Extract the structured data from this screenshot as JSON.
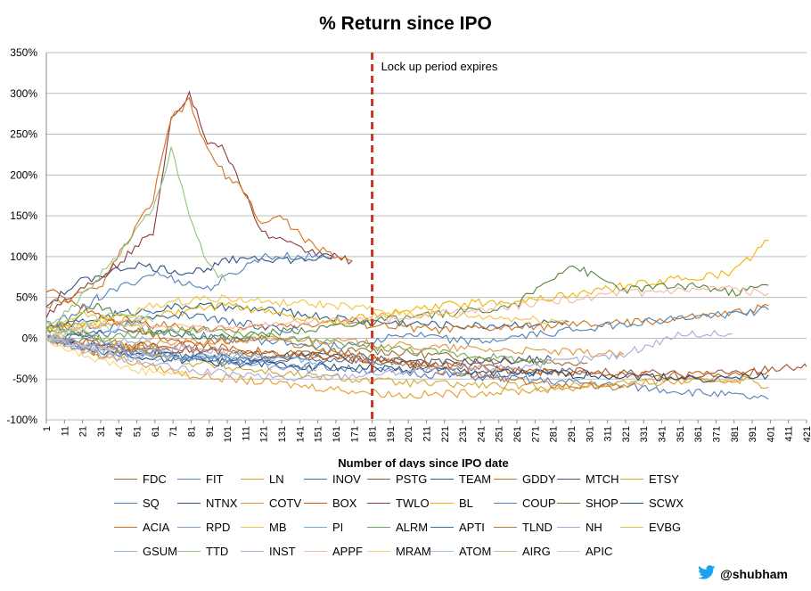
{
  "chart_data": {
    "type": "line",
    "title": "% Return since IPO",
    "xlabel": "Number of days since IPO date",
    "ylabel": "",
    "ylim": [
      -100,
      350
    ],
    "xlim": [
      1,
      421
    ],
    "y_ticks": [
      "-100%",
      "-50%",
      "0%",
      "50%",
      "100%",
      "150%",
      "200%",
      "250%",
      "300%",
      "350%"
    ],
    "x_ticks": [
      1,
      11,
      21,
      31,
      41,
      51,
      61,
      71,
      81,
      91,
      101,
      111,
      121,
      131,
      141,
      151,
      161,
      171,
      181,
      191,
      201,
      211,
      221,
      231,
      241,
      251,
      261,
      271,
      281,
      291,
      301,
      311,
      321,
      331,
      341,
      351,
      361,
      371,
      381,
      391,
      401,
      411,
      421
    ],
    "grid": true,
    "legend_position": "bottom",
    "annotation": {
      "x": 181,
      "text": "Lock up period expires",
      "style": "dashed-red-vertical"
    },
    "series": [
      {
        "name": "FDC",
        "color": "#9c6c2e",
        "points": [
          [
            1,
            0
          ],
          [
            60,
            -10
          ],
          [
            120,
            -20
          ],
          [
            180,
            -15
          ],
          [
            240,
            -25
          ],
          [
            300,
            -30
          ]
        ]
      },
      {
        "name": "FIT",
        "color": "#5b7db8",
        "points": [
          [
            1,
            20
          ],
          [
            40,
            -10
          ],
          [
            90,
            -25
          ],
          [
            150,
            -35
          ],
          [
            220,
            -45
          ],
          [
            300,
            -55
          ],
          [
            380,
            -70
          ],
          [
            400,
            -75
          ]
        ]
      },
      {
        "name": "LN",
        "color": "#e39b2b",
        "points": [
          [
            1,
            0
          ],
          [
            30,
            -20
          ],
          [
            80,
            -45
          ],
          [
            150,
            -60
          ],
          [
            200,
            -70
          ],
          [
            260,
            -65
          ],
          [
            330,
            -55
          ],
          [
            390,
            -50
          ],
          [
            400,
            -60
          ]
        ]
      },
      {
        "name": "INOV",
        "color": "#3c6fa8",
        "points": [
          [
            1,
            0
          ],
          [
            40,
            -15
          ],
          [
            100,
            -30
          ],
          [
            170,
            -25
          ],
          [
            240,
            -45
          ],
          [
            300,
            -40
          ]
        ]
      },
      {
        "name": "PSTG",
        "color": "#a0522d",
        "points": [
          [
            1,
            0
          ],
          [
            50,
            -10
          ],
          [
            120,
            -20
          ],
          [
            200,
            -30
          ],
          [
            280,
            -40
          ],
          [
            360,
            -45
          ],
          [
            421,
            -35
          ]
        ]
      },
      {
        "name": "TEAM",
        "color": "#2e5f8a",
        "points": [
          [
            1,
            10
          ],
          [
            40,
            30
          ],
          [
            80,
            40
          ],
          [
            120,
            35
          ],
          [
            180,
            20
          ],
          [
            240,
            15
          ],
          [
            290,
            20
          ]
        ]
      },
      {
        "name": "GDDY",
        "color": "#c8701c",
        "points": [
          [
            1,
            10
          ],
          [
            40,
            20
          ],
          [
            100,
            10
          ],
          [
            160,
            20
          ],
          [
            220,
            10
          ],
          [
            280,
            15
          ],
          [
            330,
            20
          ],
          [
            380,
            30
          ],
          [
            400,
            40
          ]
        ]
      },
      {
        "name": "MTCH",
        "color": "#3d5a80",
        "points": [
          [
            1,
            0
          ],
          [
            40,
            -15
          ],
          [
            100,
            -25
          ],
          [
            160,
            -20
          ],
          [
            220,
            -30
          ],
          [
            280,
            -25
          ]
        ]
      },
      {
        "name": "ETSY",
        "color": "#d4a72c",
        "points": [
          [
            1,
            20
          ],
          [
            30,
            0
          ],
          [
            80,
            -30
          ],
          [
            140,
            -45
          ],
          [
            200,
            -55
          ],
          [
            280,
            -60
          ],
          [
            350,
            -50
          ],
          [
            390,
            -50
          ]
        ]
      },
      {
        "name": "SQ",
        "color": "#4a7fb6",
        "points": [
          [
            1,
            0
          ],
          [
            50,
            10
          ],
          [
            100,
            0
          ],
          [
            160,
            -10
          ],
          [
            200,
            5
          ],
          [
            240,
            -5
          ],
          [
            290,
            10
          ],
          [
            330,
            20
          ],
          [
            380,
            30
          ],
          [
            400,
            35
          ]
        ]
      },
      {
        "name": "NTNX",
        "color": "#2d4f86",
        "points": [
          [
            1,
            40
          ],
          [
            20,
            70
          ],
          [
            50,
            90
          ],
          [
            80,
            80
          ],
          [
            110,
            100
          ],
          [
            140,
            95
          ],
          [
            160,
            100
          ]
        ]
      },
      {
        "name": "COTV",
        "color": "#e69138",
        "points": [
          [
            1,
            0
          ],
          [
            30,
            -10
          ],
          [
            80,
            -5
          ],
          [
            140,
            0
          ],
          [
            200,
            -10
          ],
          [
            260,
            -15
          ],
          [
            320,
            -20
          ]
        ]
      },
      {
        "name": "BOX",
        "color": "#c55a11",
        "points": [
          [
            1,
            60
          ],
          [
            20,
            40
          ],
          [
            50,
            10
          ],
          [
            90,
            -10
          ],
          [
            140,
            -20
          ],
          [
            200,
            -30
          ],
          [
            260,
            -40
          ],
          [
            320,
            -45
          ],
          [
            370,
            -45
          ],
          [
            400,
            -40
          ]
        ]
      },
      {
        "name": "TWLO",
        "color": "#8b3a3a",
        "points": [
          [
            1,
            30
          ],
          [
            20,
            60
          ],
          [
            40,
            90
          ],
          [
            60,
            130
          ],
          [
            70,
            270
          ],
          [
            80,
            300
          ],
          [
            90,
            240
          ],
          [
            100,
            230
          ],
          [
            110,
            180
          ],
          [
            120,
            130
          ],
          [
            140,
            110
          ],
          [
            160,
            100
          ],
          [
            170,
            95
          ]
        ]
      },
      {
        "name": "BL",
        "color": "#f0b400",
        "points": [
          [
            1,
            10
          ],
          [
            40,
            20
          ],
          [
            100,
            40
          ],
          [
            160,
            20
          ],
          [
            220,
            40
          ],
          [
            280,
            50
          ],
          [
            340,
            70
          ],
          [
            380,
            80
          ],
          [
            400,
            120
          ]
        ]
      },
      {
        "name": "COUP",
        "color": "#4f81bd",
        "points": [
          [
            1,
            10
          ],
          [
            30,
            50
          ],
          [
            60,
            80
          ],
          [
            90,
            60
          ],
          [
            120,
            100
          ],
          [
            160,
            100
          ]
        ]
      },
      {
        "name": "SHOP",
        "color": "#548235",
        "points": [
          [
            1,
            10
          ],
          [
            30,
            40
          ],
          [
            60,
            10
          ],
          [
            100,
            0
          ],
          [
            140,
            10
          ],
          [
            180,
            20
          ],
          [
            220,
            30
          ],
          [
            260,
            40
          ],
          [
            290,
            90
          ],
          [
            320,
            60
          ],
          [
            360,
            65
          ],
          [
            380,
            55
          ],
          [
            400,
            65
          ]
        ]
      },
      {
        "name": "SCWX",
        "color": "#1f4e79",
        "points": [
          [
            1,
            0
          ],
          [
            40,
            -20
          ],
          [
            100,
            -30
          ],
          [
            160,
            -35
          ],
          [
            220,
            -40
          ],
          [
            300,
            -45
          ],
          [
            380,
            -50
          ],
          [
            400,
            -45
          ]
        ]
      },
      {
        "name": "ACIA",
        "color": "#d66f1c",
        "points": [
          [
            1,
            40
          ],
          [
            30,
            60
          ],
          [
            60,
            170
          ],
          [
            70,
            270
          ],
          [
            80,
            290
          ],
          [
            90,
            230
          ],
          [
            100,
            200
          ],
          [
            110,
            180
          ],
          [
            120,
            140
          ],
          [
            130,
            150
          ],
          [
            150,
            110
          ],
          [
            170,
            95
          ]
        ]
      },
      {
        "name": "RPD",
        "color": "#7f9bc9",
        "points": [
          [
            1,
            0
          ],
          [
            30,
            -10
          ],
          [
            70,
            -20
          ],
          [
            110,
            -30
          ],
          [
            150,
            -40
          ]
        ]
      },
      {
        "name": "MB",
        "color": "#f5c242",
        "points": [
          [
            1,
            0
          ],
          [
            30,
            20
          ],
          [
            60,
            40
          ],
          [
            90,
            50
          ],
          [
            120,
            45
          ],
          [
            160,
            40
          ],
          [
            200,
            30
          ],
          [
            250,
            25
          ],
          [
            290,
            20
          ]
        ]
      },
      {
        "name": "PI",
        "color": "#6fa8dc",
        "points": [
          [
            1,
            0
          ],
          [
            30,
            -15
          ],
          [
            70,
            -25
          ],
          [
            110,
            -20
          ],
          [
            150,
            -30
          ]
        ]
      },
      {
        "name": "ALRM",
        "color": "#6aa84f",
        "points": [
          [
            1,
            10
          ],
          [
            30,
            0
          ],
          [
            80,
            10
          ],
          [
            130,
            0
          ],
          [
            180,
            -10
          ],
          [
            230,
            -20
          ],
          [
            280,
            -30
          ]
        ]
      },
      {
        "name": "APTI",
        "color": "#3b6ea5",
        "points": [
          [
            1,
            0
          ],
          [
            30,
            10
          ],
          [
            70,
            30
          ],
          [
            100,
            20
          ],
          [
            140,
            10
          ]
        ]
      },
      {
        "name": "TLND",
        "color": "#bf7a33",
        "points": [
          [
            1,
            0
          ],
          [
            30,
            -20
          ],
          [
            70,
            -10
          ],
          [
            120,
            0
          ],
          [
            170,
            -20
          ],
          [
            220,
            -40
          ],
          [
            270,
            -55
          ],
          [
            320,
            -60
          ]
        ]
      },
      {
        "name": "NH",
        "color": "#a9a9d6",
        "points": [
          [
            1,
            0
          ],
          [
            30,
            -20
          ],
          [
            80,
            -40
          ],
          [
            140,
            -50
          ],
          [
            200,
            -40
          ],
          [
            260,
            -35
          ],
          [
            320,
            -20
          ],
          [
            350,
            5
          ],
          [
            380,
            5
          ]
        ]
      },
      {
        "name": "EVBG",
        "color": "#e0c040",
        "points": [
          [
            1,
            10
          ],
          [
            20,
            30
          ],
          [
            40,
            20
          ],
          [
            60,
            10
          ]
        ]
      },
      {
        "name": "GSUM",
        "color": "#8fb4d9",
        "points": [
          [
            1,
            0
          ],
          [
            20,
            -10
          ],
          [
            40,
            -5
          ],
          [
            60,
            0
          ]
        ]
      },
      {
        "name": "TTD",
        "color": "#93c47d",
        "points": [
          [
            1,
            10
          ],
          [
            20,
            50
          ],
          [
            40,
            100
          ],
          [
            60,
            160
          ],
          [
            70,
            230
          ],
          [
            80,
            150
          ],
          [
            90,
            90
          ],
          [
            100,
            70
          ]
        ]
      },
      {
        "name": "INST",
        "color": "#b4a7d6",
        "points": [
          [
            1,
            0
          ],
          [
            20,
            -10
          ],
          [
            50,
            -20
          ],
          [
            80,
            -10
          ],
          [
            110,
            -20
          ]
        ]
      },
      {
        "name": "APPF",
        "color": "#f4b6a0",
        "points": [
          [
            1,
            0
          ],
          [
            40,
            20
          ],
          [
            90,
            10
          ],
          [
            140,
            20
          ],
          [
            200,
            25
          ],
          [
            260,
            40
          ],
          [
            320,
            55
          ],
          [
            380,
            60
          ],
          [
            400,
            55
          ]
        ]
      },
      {
        "name": "MRAM",
        "color": "#f6d27a",
        "points": [
          [
            1,
            0
          ],
          [
            20,
            -20
          ],
          [
            50,
            -40
          ],
          [
            80,
            -45
          ]
        ]
      },
      {
        "name": "ATOM",
        "color": "#9ec5e8",
        "points": [
          [
            1,
            0
          ],
          [
            20,
            20
          ],
          [
            40,
            10
          ],
          [
            60,
            30
          ]
        ]
      },
      {
        "name": "AIRG",
        "color": "#a8d08d",
        "points": [
          [
            1,
            0
          ],
          [
            20,
            10
          ],
          [
            40,
            30
          ],
          [
            60,
            20
          ]
        ]
      },
      {
        "name": "APIC",
        "color": "#c9c9c9",
        "points": [
          [
            1,
            0
          ],
          [
            20,
            -10
          ],
          [
            40,
            -20
          ]
        ]
      }
    ]
  },
  "credit": {
    "handle": "@shubham",
    "icon": "twitter-bird-icon",
    "icon_color": "#1da1f2"
  }
}
